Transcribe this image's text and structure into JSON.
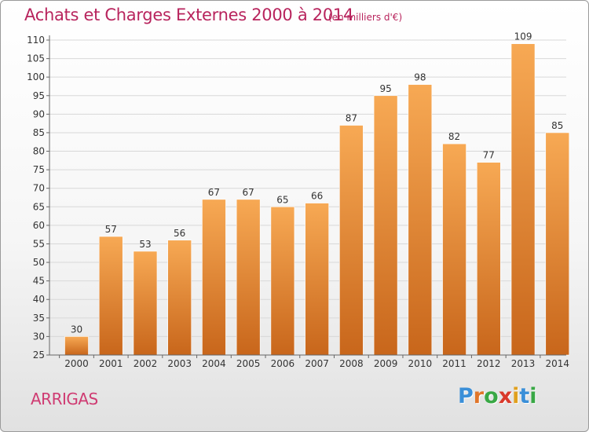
{
  "header": {
    "title": "Achats et Charges Externes 2000 à 2014",
    "unit": "(en milliers d'€)"
  },
  "footer": {
    "city": "ARRIGAS",
    "logo_letters": [
      "P",
      "r",
      "o",
      "x",
      "i",
      "t",
      "i"
    ],
    "logo_colors": [
      "#3a8fd8",
      "#e0762a",
      "#39a845",
      "#d9392b",
      "#e0a020",
      "#3a8fd8",
      "#39a845"
    ]
  },
  "chart_data": {
    "type": "bar",
    "title": "Achats et Charges Externes 2000 à 2014",
    "subtitle": "(en milliers d'€)",
    "categories": [
      "2000",
      "2001",
      "2002",
      "2003",
      "2004",
      "2005",
      "2006",
      "2007",
      "2008",
      "2009",
      "2010",
      "2011",
      "2012",
      "2013",
      "2014"
    ],
    "values": [
      30,
      57,
      53,
      56,
      67,
      67,
      65,
      66,
      87,
      95,
      98,
      82,
      77,
      109,
      85
    ],
    "ylim": [
      25,
      110
    ],
    "yticks": [
      25,
      30,
      35,
      40,
      45,
      50,
      55,
      60,
      65,
      70,
      75,
      80,
      85,
      90,
      95,
      100,
      105,
      110
    ],
    "grid": true,
    "bar_color_top": "#f7a954",
    "bar_color_bottom": "#c8661b",
    "grid_color": "#d8d8d8"
  }
}
